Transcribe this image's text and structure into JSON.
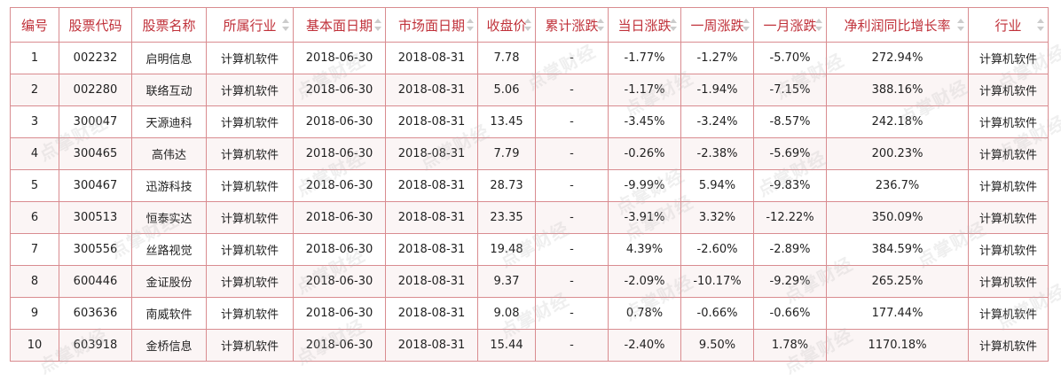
{
  "headers": [
    {
      "label": "编号",
      "sortable": false
    },
    {
      "label": "股票代码",
      "sortable": false
    },
    {
      "label": "股票名称",
      "sortable": false
    },
    {
      "label": "所属行业",
      "sortable": true
    },
    {
      "label": "基本面日期",
      "sortable": true
    },
    {
      "label": "市场面日期",
      "sortable": true
    },
    {
      "label": "收盘价",
      "sortable": true
    },
    {
      "label": "累计涨跌",
      "sortable": true
    },
    {
      "label": "当日涨跌",
      "sortable": true
    },
    {
      "label": "一周涨跌",
      "sortable": true
    },
    {
      "label": "一月涨跌",
      "sortable": true
    },
    {
      "label": "净利润同比增长率",
      "sortable": true
    },
    {
      "label": "行业",
      "sortable": true
    }
  ],
  "rows": [
    [
      "1",
      "002232",
      "启明信息",
      "计算机软件",
      "2018-06-30",
      "2018-08-31",
      "7.78",
      "-",
      "-1.77%",
      "-1.27%",
      "-5.70%",
      "272.94%",
      "计算机软件"
    ],
    [
      "2",
      "002280",
      "联络互动",
      "计算机软件",
      "2018-06-30",
      "2018-08-31",
      "5.06",
      "-",
      "-1.17%",
      "-1.94%",
      "-7.15%",
      "388.16%",
      "计算机软件"
    ],
    [
      "3",
      "300047",
      "天源迪科",
      "计算机软件",
      "2018-06-30",
      "2018-08-31",
      "13.45",
      "-",
      "-3.45%",
      "-3.24%",
      "-8.57%",
      "242.18%",
      "计算机软件"
    ],
    [
      "4",
      "300465",
      "高伟达",
      "计算机软件",
      "2018-06-30",
      "2018-08-31",
      "7.79",
      "-",
      "-0.26%",
      "-2.38%",
      "-5.69%",
      "200.23%",
      "计算机软件"
    ],
    [
      "5",
      "300467",
      "迅游科技",
      "计算机软件",
      "2018-06-30",
      "2018-08-31",
      "28.73",
      "-",
      "-9.99%",
      "5.94%",
      "-9.83%",
      "236.7%",
      "计算机软件"
    ],
    [
      "6",
      "300513",
      "恒泰实达",
      "计算机软件",
      "2018-06-30",
      "2018-08-31",
      "23.35",
      "-",
      "-3.91%",
      "3.32%",
      "-12.22%",
      "350.09%",
      "计算机软件"
    ],
    [
      "7",
      "300556",
      "丝路视觉",
      "计算机软件",
      "2018-06-30",
      "2018-08-31",
      "19.48",
      "-",
      "4.39%",
      "-2.60%",
      "-2.89%",
      "384.59%",
      "计算机软件"
    ],
    [
      "8",
      "600446",
      "金证股份",
      "计算机软件",
      "2018-06-30",
      "2018-08-31",
      "9.37",
      "-",
      "-2.09%",
      "-10.17%",
      "-9.29%",
      "265.25%",
      "计算机软件"
    ],
    [
      "9",
      "603636",
      "南威软件",
      "计算机软件",
      "2018-06-30",
      "2018-08-31",
      "9.08",
      "-",
      "0.78%",
      "-0.66%",
      "-0.66%",
      "177.44%",
      "计算机软件"
    ],
    [
      "10",
      "603918",
      "金桥信息",
      "计算机软件",
      "2018-06-30",
      "2018-08-31",
      "15.44",
      "-",
      "-2.40%",
      "9.50%",
      "1.78%",
      "1170.18%",
      "计算机软件"
    ]
  ],
  "watermark_text": "点掌财经",
  "colors": {
    "header_text": "#c0313a",
    "border": "#d98c90",
    "alt_row_bg": "#fbf5f5",
    "sort_icon": "#cccccc"
  }
}
